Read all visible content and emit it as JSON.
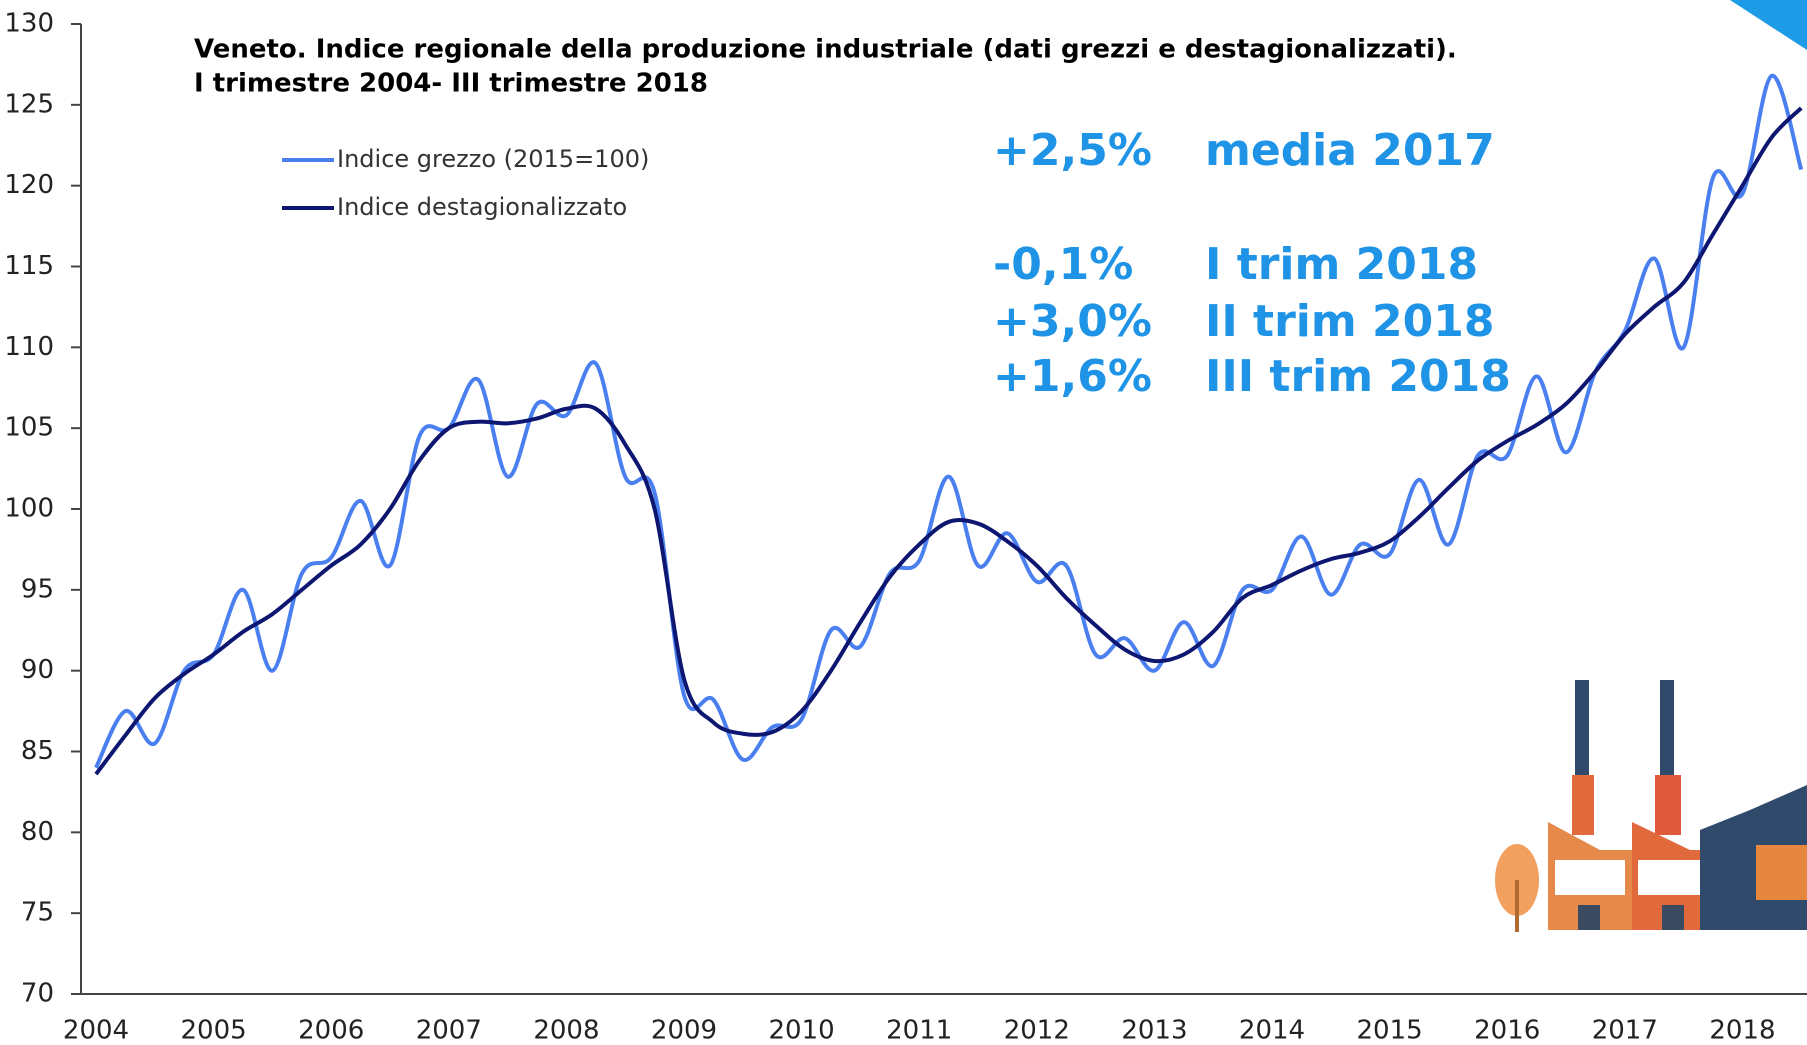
{
  "chart_data": {
    "type": "line",
    "title": "Veneto. Indice regionale della produzione industriale (dati grezzi e destagionalizzati).",
    "subtitle": "I trimestre 2004- III trimestre 2018",
    "categories": [
      "2004",
      null,
      null,
      null,
      "2005",
      null,
      null,
      null,
      "2006",
      null,
      null,
      null,
      "2007",
      null,
      null,
      null,
      "2008",
      null,
      null,
      null,
      "2009",
      null,
      null,
      null,
      "2010",
      null,
      null,
      null,
      "2011",
      null,
      null,
      null,
      "2012",
      null,
      null,
      null,
      "2013",
      null,
      null,
      null,
      "2014",
      null,
      null,
      null,
      "2015",
      null,
      null,
      null,
      "2016",
      null,
      null,
      null,
      "2017",
      null,
      null,
      null,
      "2018",
      null,
      null
    ],
    "series": [
      {
        "name": "Indice grezzo (2015=100)",
        "color": "#4a7ff0",
        "width": 4,
        "values": [
          84,
          87.5,
          85.5,
          90,
          91,
          95,
          90,
          96,
          97,
          100.5,
          96.5,
          104.5,
          105,
          108,
          102,
          106.5,
          105.8,
          109,
          102,
          101,
          88.5,
          88.2,
          84.5,
          86.5,
          87,
          92.5,
          91.5,
          96,
          96.8,
          102,
          96.5,
          98.5,
          95.5,
          96.5,
          91,
          92,
          90,
          93,
          90.3,
          95,
          95,
          98.3,
          94.7,
          97.8,
          97.2,
          101.8,
          97.8,
          103.3,
          103.3,
          108.2,
          103.5,
          108.5,
          111,
          115.5,
          110,
          120.5,
          119.5,
          126.8,
          121
        ]
      },
      {
        "name": "Indice destagionalizzato",
        "color": "#0d1670",
        "width": 4,
        "values": [
          83.6,
          86,
          88.3,
          89.8,
          91,
          92.4,
          93.5,
          95,
          96.5,
          97.8,
          100,
          103,
          105,
          105.4,
          105.3,
          105.6,
          106.2,
          106.2,
          104,
          100,
          89.5,
          86.8,
          86.1,
          86.2,
          87.5,
          90,
          93,
          95.8,
          97.8,
          99.2,
          99.1,
          98,
          96.5,
          94.5,
          92.8,
          91.3,
          90.6,
          91,
          92.4,
          94.5,
          95.3,
          96.2,
          96.9,
          97.3,
          98,
          99.5,
          101.3,
          103,
          104.2,
          105.2,
          106.5,
          108.5,
          110.8,
          112.5,
          114,
          117,
          120,
          123,
          124.8
        ]
      }
    ],
    "ylim": [
      70,
      130
    ],
    "yticks": [
      70,
      75,
      80,
      85,
      90,
      95,
      100,
      105,
      110,
      115,
      120,
      125,
      130
    ],
    "annotations": [
      [
        "+2,5%",
        "media 2017"
      ],
      [
        "-0,1%",
        "I trim 2018"
      ],
      [
        "+3,0%",
        "II trim 2018"
      ],
      [
        "+1,6%",
        "III trim 2018"
      ]
    ]
  }
}
